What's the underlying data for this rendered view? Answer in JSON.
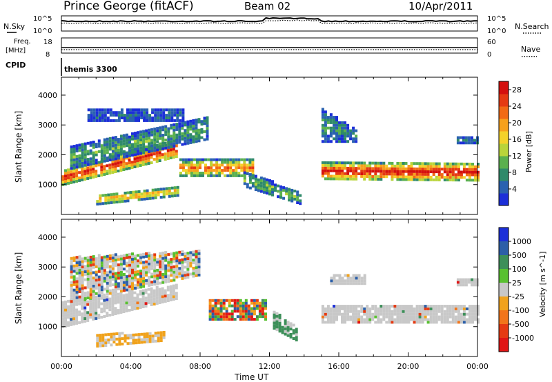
{
  "header": {
    "station": "Prince George (fitACF)",
    "beam": "Beam 02",
    "date": "10/Apr/2011"
  },
  "panels": {
    "nsky_label": "N.Sky",
    "nsearch_label": "N.Search",
    "freq_label_1": "Freq.",
    "freq_label_2": "[MHz]",
    "nave_label": "Nave",
    "cpid_label": "CPID",
    "cpid_value": "themis 3300",
    "noise_ticks_left": [
      "10^5",
      "10^0"
    ],
    "noise_ticks_right": [
      "10^5",
      "10^0"
    ],
    "freq_ticks": [
      "18",
      "8"
    ],
    "nave_ticks": [
      "60",
      "0"
    ]
  },
  "chart_data": [
    {
      "type": "heatmap",
      "name": "Power",
      "xlabel": "Time UT",
      "ylabel": "Slant Range [km]",
      "x_ticks": [
        "00:00",
        "04:00",
        "08:00",
        "12:00",
        "16:00",
        "20:00",
        "00:00"
      ],
      "xlim_hours": [
        0,
        24
      ],
      "ylim": [
        0,
        4600
      ],
      "y_ticks": [
        1000,
        2000,
        3000,
        4000
      ],
      "colorbar_label": "Power [dB]",
      "colorbar_ticks": [
        4,
        8,
        12,
        16,
        20,
        24,
        28
      ],
      "colorbar_range": [
        0,
        30
      ],
      "colors": [
        "#1c2fd8",
        "#2a61b0",
        "#2f8a6a",
        "#5ab04e",
        "#b9d43a",
        "#f4d22a",
        "#f7a11c",
        "#f16a14",
        "#e53a12",
        "#d4100e"
      ],
      "bands": [
        {
          "t0": 0.0,
          "t1": 6.6,
          "r0": 950,
          "r1": 1450,
          "r0end": 1900,
          "r1end": 2500,
          "level": 0.85
        },
        {
          "t0": 6.8,
          "t1": 11.0,
          "r0": 1250,
          "r1": 1800,
          "r0end": 1250,
          "r1end": 1800,
          "level": 0.7
        },
        {
          "t0": 15.0,
          "t1": 24.0,
          "r0": 1150,
          "r1": 1700,
          "r0end": 1100,
          "r1end": 1700,
          "level": 0.9
        },
        {
          "t0": 0.5,
          "t1": 8.5,
          "r0": 1500,
          "r1": 2300,
          "r0end": 2500,
          "r1end": 3300,
          "level": 0.3
        },
        {
          "t0": 2.0,
          "t1": 6.8,
          "r0": 300,
          "r1": 650,
          "r0end": 600,
          "r1end": 900,
          "level": 0.6
        },
        {
          "t0": 10.5,
          "t1": 13.8,
          "r0": 900,
          "r1": 1400,
          "r0end": 300,
          "r1end": 700,
          "level": 0.35
        },
        {
          "t0": 1.5,
          "t1": 7.0,
          "r0": 3100,
          "r1": 3500,
          "r0end": 3100,
          "r1end": 3500,
          "level": 0.15
        },
        {
          "t0": 15.0,
          "t1": 17.0,
          "r0": 2400,
          "r1": 3500,
          "r0end": 2400,
          "r1end": 2800,
          "level": 0.25
        },
        {
          "t0": 22.8,
          "t1": 24.0,
          "r0": 2350,
          "r1": 2600,
          "r0end": 2350,
          "r1end": 2600,
          "level": 0.2
        }
      ]
    },
    {
      "type": "heatmap",
      "name": "Velocity",
      "xlabel": "Time UT",
      "ylabel": "Slant Range [km]",
      "x_ticks": [
        "00:00",
        "04:00",
        "08:00",
        "12:00",
        "16:00",
        "20:00",
        "00:00"
      ],
      "xlim_hours": [
        0,
        24
      ],
      "ylim": [
        0,
        4600
      ],
      "y_ticks": [
        1000,
        2000,
        3000,
        4000
      ],
      "colorbar_label": "Velocity [m s^-1]",
      "colorbar_ticks": [
        "1000",
        "500",
        "100",
        "25",
        "-25",
        "-100",
        "-500",
        "-1000"
      ],
      "colors": [
        "#1c2fd8",
        "#2c5fa8",
        "#3d8f59",
        "#58c030",
        "#c8c8c8",
        "#f0a21c",
        "#f2751a",
        "#e53a12",
        "#e01515"
      ],
      "bands": [
        {
          "t0": 0.0,
          "t1": 6.6,
          "r0": 950,
          "r1": 1800,
          "r0end": 1900,
          "r1end": 2400,
          "cls": "ground"
        },
        {
          "t0": 8.5,
          "t1": 11.8,
          "r0": 1200,
          "r1": 1900,
          "r0end": 1200,
          "r1end": 1900,
          "cls": "mixed"
        },
        {
          "t0": 15.0,
          "t1": 24.0,
          "r0": 1100,
          "r1": 1700,
          "r0end": 1100,
          "r1end": 1700,
          "cls": "ground"
        },
        {
          "t0": 12.2,
          "t1": 13.5,
          "r0": 900,
          "r1": 1500,
          "r0end": 500,
          "r1end": 1000,
          "cls": "green"
        },
        {
          "t0": 2.0,
          "t1": 6.0,
          "r0": 300,
          "r1": 700,
          "r0end": 500,
          "r1end": 800,
          "cls": "orange"
        },
        {
          "t0": 0.5,
          "t1": 8.0,
          "r0": 1800,
          "r1": 3300,
          "r0end": 2700,
          "r1end": 3500,
          "cls": "sparse"
        },
        {
          "t0": 15.5,
          "t1": 17.5,
          "r0": 2400,
          "r1": 2700,
          "r0end": 2400,
          "r1end": 2700,
          "cls": "ground"
        },
        {
          "t0": 22.8,
          "t1": 24.0,
          "r0": 2350,
          "r1": 2600,
          "r0end": 2350,
          "r1end": 2600,
          "cls": "ground"
        }
      ]
    }
  ]
}
